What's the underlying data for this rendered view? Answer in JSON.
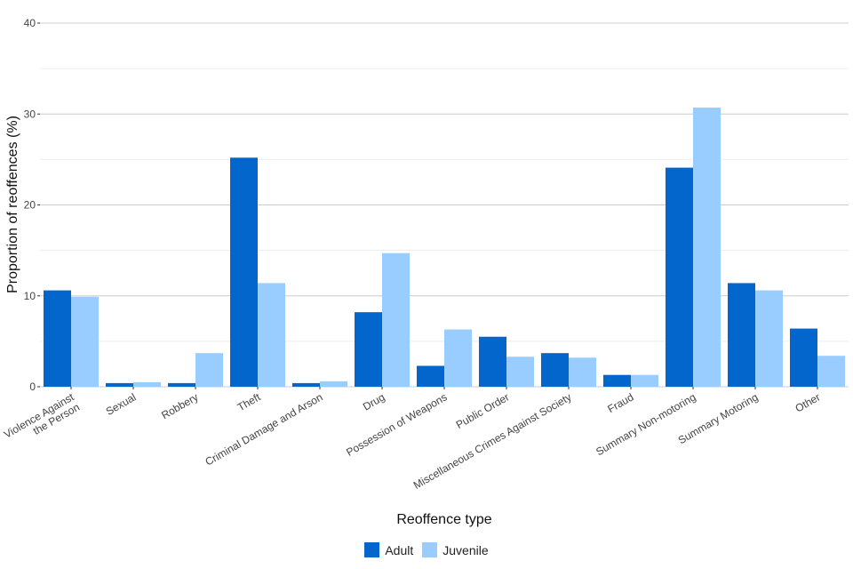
{
  "chart_data": {
    "type": "bar",
    "xlabel": "Reoffence type",
    "ylabel": "Proportion of reoffences (%)",
    "ylim": [
      0,
      40
    ],
    "yticks": [
      0,
      10,
      20,
      30,
      40
    ],
    "grid": true,
    "legend_position": "bottom",
    "categories": [
      "Violence Against\nthe Person",
      "Sexual",
      "Robbery",
      "Theft",
      "Criminal Damage and Arson",
      "Drug",
      "Possession of Weapons",
      "Public Order",
      "Miscellaneous Crimes Against Society",
      "Fraud",
      "Summary Non-motoring",
      "Summary Motoring",
      "Other"
    ],
    "series": [
      {
        "name": "Adult",
        "color": "#0366cc",
        "values": [
          10.6,
          0.4,
          0.4,
          25.2,
          0.4,
          8.2,
          2.3,
          5.5,
          3.7,
          1.3,
          24.1,
          11.4,
          6.4
        ]
      },
      {
        "name": "Juvenile",
        "color": "#99ccff",
        "values": [
          9.9,
          0.5,
          3.7,
          11.4,
          0.6,
          14.7,
          6.3,
          3.3,
          3.2,
          1.3,
          30.7,
          10.6,
          3.4
        ]
      }
    ]
  }
}
